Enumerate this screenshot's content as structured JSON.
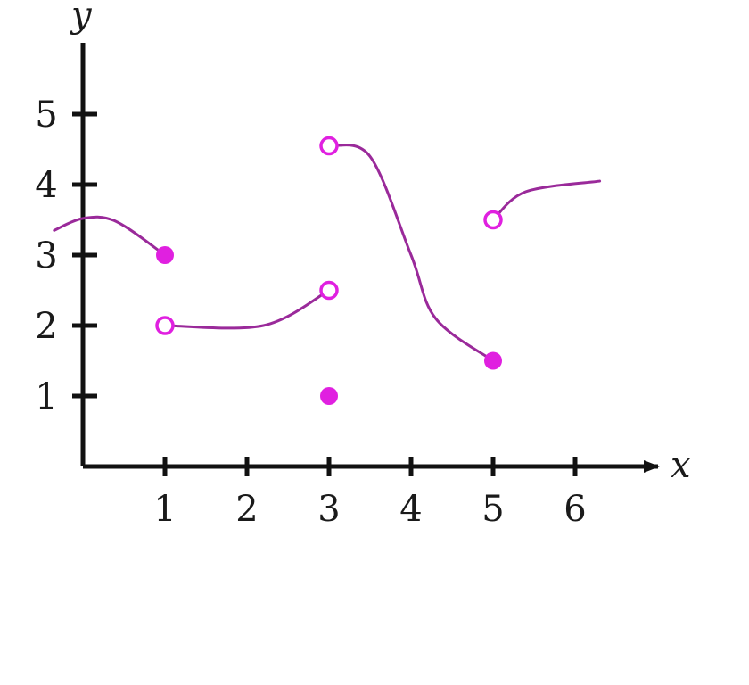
{
  "chart_data": {
    "type": "line",
    "xlabel": "x",
    "ylabel": "y",
    "xlim": [
      0,
      7
    ],
    "ylim": [
      0,
      6
    ],
    "x_ticks": [
      1,
      2,
      3,
      4,
      5,
      6
    ],
    "y_ticks": [
      1,
      2,
      3,
      4,
      5
    ],
    "x_tick_labels": [
      "1",
      "2",
      "3",
      "4",
      "5",
      "6"
    ],
    "y_tick_labels": [
      "1",
      "2",
      "3",
      "4",
      "5"
    ],
    "grid": false,
    "colors": {
      "curve": "#9a2a9a",
      "point": "#e020e0",
      "axis": "#111111"
    },
    "series": [
      {
        "points": [
          [
            -0.35,
            3.35
          ],
          [
            0,
            3.52
          ],
          [
            0.4,
            3.48
          ],
          [
            1.0,
            3.0
          ]
        ]
      },
      {
        "points": [
          [
            1.0,
            2.0
          ],
          [
            2.2,
            2.0
          ],
          [
            3.0,
            2.5
          ]
        ]
      },
      {
        "points": [
          [
            3.0,
            4.55
          ],
          [
            3.5,
            4.4
          ],
          [
            4.0,
            3.0
          ],
          [
            4.3,
            2.1
          ],
          [
            5.0,
            1.5
          ]
        ]
      },
      {
        "points": [
          [
            5.0,
            3.5
          ],
          [
            5.4,
            3.9
          ],
          [
            6.3,
            4.05
          ]
        ]
      }
    ],
    "markers": [
      {
        "x": 1,
        "y": 3,
        "filled": true
      },
      {
        "x": 1,
        "y": 2,
        "filled": false
      },
      {
        "x": 3,
        "y": 2.5,
        "filled": false
      },
      {
        "x": 3,
        "y": 1,
        "filled": true
      },
      {
        "x": 3,
        "y": 4.55,
        "filled": false
      },
      {
        "x": 5,
        "y": 1.5,
        "filled": true
      },
      {
        "x": 5,
        "y": 3.5,
        "filled": false
      }
    ]
  }
}
